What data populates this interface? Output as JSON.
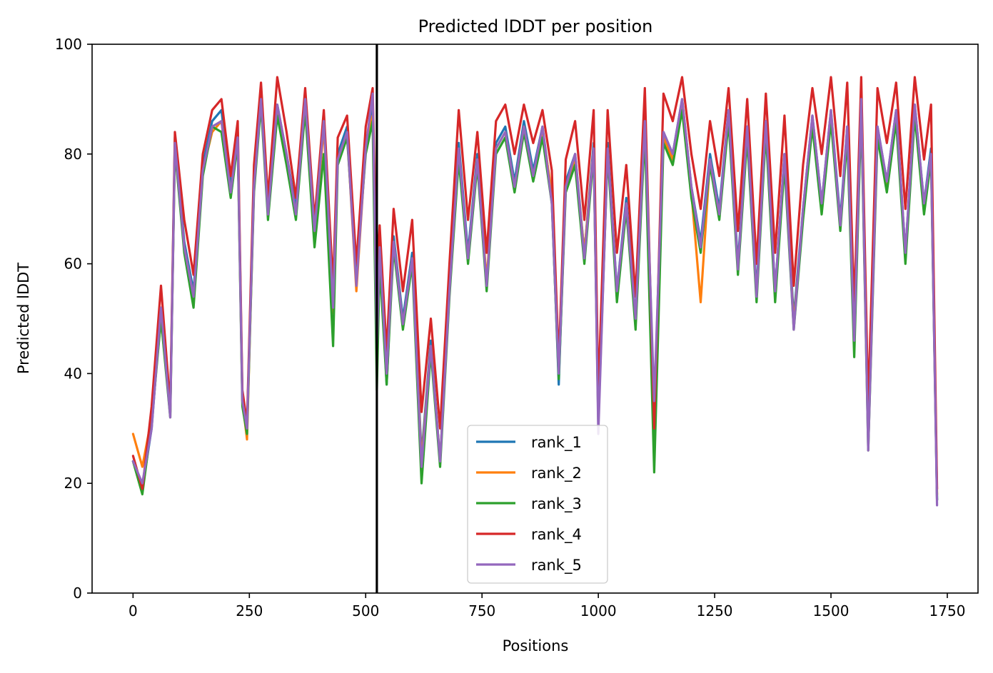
{
  "chart_data": {
    "type": "line",
    "title": "Predicted lDDT per position",
    "xlabel": "Positions",
    "ylabel": "Predicted lDDT",
    "xlim": [
      -88,
      1816
    ],
    "ylim": [
      0,
      100
    ],
    "x_ticks": [
      0,
      250,
      500,
      750,
      1000,
      1250,
      1500,
      1750
    ],
    "y_ticks": [
      0,
      20,
      40,
      60,
      80,
      100
    ],
    "x_tick_labels": [
      "0",
      "250",
      "500",
      "750",
      "1000",
      "1250",
      "1500",
      "1750"
    ],
    "y_tick_labels": [
      "0",
      "20",
      "40",
      "60",
      "80",
      "100"
    ],
    "grid": false,
    "legend_position": "lower center",
    "chain_break_x": 524,
    "chain_break_color": "#000000",
    "x": [
      0,
      20,
      40,
      60,
      80,
      90,
      110,
      130,
      150,
      170,
      190,
      210,
      225,
      235,
      245,
      260,
      275,
      290,
      310,
      330,
      350,
      370,
      390,
      410,
      430,
      440,
      460,
      480,
      500,
      515,
      524,
      530,
      545,
      560,
      580,
      600,
      620,
      640,
      660,
      680,
      700,
      720,
      740,
      760,
      780,
      800,
      820,
      840,
      860,
      880,
      900,
      915,
      930,
      950,
      970,
      990,
      1000,
      1020,
      1040,
      1060,
      1080,
      1100,
      1120,
      1140,
      1160,
      1180,
      1200,
      1220,
      1240,
      1260,
      1280,
      1300,
      1320,
      1340,
      1360,
      1380,
      1400,
      1420,
      1440,
      1460,
      1480,
      1500,
      1520,
      1535,
      1550,
      1565,
      1580,
      1600,
      1620,
      1640,
      1660,
      1680,
      1700,
      1715,
      1728
    ],
    "series": [
      {
        "name": "rank_1",
        "color": "#1f77b4",
        "values": [
          24,
          19,
          30,
          52,
          33,
          83,
          64,
          55,
          78,
          86,
          88,
          74,
          84,
          36,
          30,
          75,
          91,
          70,
          89,
          80,
          70,
          90,
          66,
          86,
          52,
          80,
          85,
          56,
          82,
          88,
          50,
          64,
          38,
          65,
          50,
          62,
          25,
          46,
          24,
          56,
          82,
          62,
          80,
          56,
          82,
          85,
          75,
          86,
          77,
          85,
          72,
          38,
          75,
          80,
          62,
          82,
          32,
          82,
          55,
          72,
          50,
          86,
          29,
          84,
          80,
          90,
          74,
          64,
          80,
          70,
          88,
          60,
          85,
          55,
          86,
          55,
          80,
          50,
          70,
          87,
          71,
          88,
          68,
          85,
          45,
          90,
          28,
          85,
          75,
          88,
          62,
          89,
          71,
          81,
          17
        ]
      },
      {
        "name": "rank_2",
        "color": "#ff7f0e",
        "values": [
          29,
          23,
          32,
          50,
          33,
          81,
          63,
          54,
          77,
          84,
          86,
          73,
          83,
          35,
          28,
          74,
          90,
          69,
          88,
          79,
          69,
          89,
          65,
          85,
          51,
          79,
          84,
          55,
          81,
          87,
          61,
          63,
          39,
          64,
          49,
          61,
          24,
          45,
          24,
          55,
          80,
          61,
          79,
          57,
          81,
          84,
          74,
          85,
          76,
          84,
          73,
          40,
          74,
          79,
          62,
          81,
          32,
          81,
          54,
          71,
          49,
          85,
          30,
          83,
          79,
          89,
          73,
          53,
          79,
          69,
          87,
          59,
          84,
          54,
          85,
          54,
          79,
          49,
          69,
          86,
          70,
          87,
          67,
          84,
          46,
          89,
          28,
          84,
          74,
          87,
          61,
          88,
          70,
          80,
          18
        ]
      },
      {
        "name": "rank_3",
        "color": "#2ca02c",
        "values": [
          24,
          18,
          31,
          50,
          32,
          81,
          62,
          52,
          76,
          85,
          84,
          72,
          82,
          34,
          29,
          73,
          89,
          68,
          87,
          78,
          68,
          88,
          63,
          80,
          45,
          78,
          83,
          58,
          80,
          86,
          37,
          60,
          38,
          63,
          48,
          60,
          20,
          44,
          23,
          54,
          79,
          60,
          78,
          55,
          80,
          83,
          73,
          84,
          75,
          83,
          71,
          39,
          73,
          78,
          60,
          80,
          31,
          80,
          53,
          70,
          48,
          84,
          22,
          82,
          78,
          88,
          72,
          62,
          78,
          68,
          86,
          58,
          83,
          53,
          84,
          53,
          78,
          48,
          68,
          85,
          69,
          86,
          66,
          83,
          43,
          88,
          26,
          83,
          73,
          86,
          60,
          87,
          69,
          79,
          17
        ]
      },
      {
        "name": "rank_4",
        "color": "#d62728",
        "values": [
          25,
          19,
          34,
          56,
          34,
          84,
          68,
          58,
          80,
          88,
          90,
          76,
          86,
          37,
          31,
          78,
          93,
          72,
          94,
          84,
          72,
          92,
          68,
          88,
          56,
          83,
          87,
          60,
          85,
          92,
          57,
          67,
          44,
          70,
          55,
          68,
          33,
          50,
          30,
          60,
          88,
          68,
          84,
          62,
          86,
          89,
          80,
          89,
          82,
          88,
          77,
          42,
          79,
          86,
          68,
          88,
          36,
          88,
          62,
          78,
          54,
          92,
          30,
          91,
          86,
          94,
          80,
          70,
          86,
          76,
          92,
          66,
          90,
          60,
          91,
          62,
          87,
          56,
          78,
          92,
          80,
          94,
          76,
          93,
          52,
          94,
          34,
          92,
          82,
          93,
          70,
          94,
          79,
          89,
          19
        ]
      },
      {
        "name": "rank_5",
        "color": "#9467bd",
        "values": [
          24,
          20,
          30,
          52,
          32,
          82,
          63,
          54,
          77,
          85,
          86,
          73,
          83,
          35,
          30,
          74,
          90,
          69,
          89,
          80,
          69,
          90,
          66,
          86,
          52,
          79,
          84,
          56,
          81,
          91,
          45,
          63,
          40,
          64,
          49,
          61,
          23,
          45,
          24,
          55,
          81,
          61,
          79,
          56,
          81,
          84,
          74,
          85,
          76,
          85,
          71,
          40,
          74,
          80,
          61,
          81,
          29,
          81,
          55,
          71,
          50,
          86,
          35,
          84,
          80,
          90,
          74,
          63,
          79,
          69,
          88,
          59,
          85,
          54,
          86,
          55,
          80,
          48,
          70,
          87,
          71,
          88,
          67,
          85,
          46,
          90,
          26,
          85,
          75,
          88,
          62,
          89,
          71,
          80,
          16
        ]
      }
    ]
  }
}
